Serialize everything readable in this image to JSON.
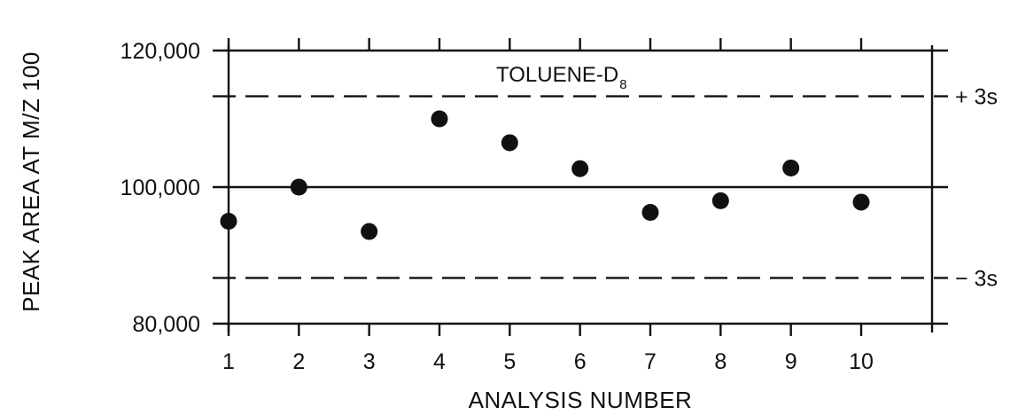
{
  "chart_data": {
    "type": "scatter",
    "title": "",
    "xlabel": "ANALYSIS NUMBER",
    "ylabel": "PEAK AREA AT M/Z 100",
    "annotation": {
      "main": "TOLUENE-D",
      "subscript": "8"
    },
    "xlim": [
      1,
      10
    ],
    "ylim": [
      80000,
      120000
    ],
    "x_ticks": [
      1,
      2,
      3,
      4,
      5,
      6,
      7,
      8,
      9,
      10
    ],
    "x_tick_labels": [
      "1",
      "2",
      "3",
      "4",
      "5",
      "6",
      "7",
      "8",
      "9",
      "10"
    ],
    "y_ticks": [
      80000,
      100000,
      120000
    ],
    "y_tick_labels": [
      "80,000",
      "100,000",
      "120,000"
    ],
    "points": [
      {
        "x": 1,
        "y": 95000
      },
      {
        "x": 2,
        "y": 100000
      },
      {
        "x": 3,
        "y": 93500
      },
      {
        "x": 4,
        "y": 110000
      },
      {
        "x": 5,
        "y": 106500
      },
      {
        "x": 6,
        "y": 102700
      },
      {
        "x": 7,
        "y": 96300
      },
      {
        "x": 8,
        "y": 98000
      },
      {
        "x": 9,
        "y": 102800
      },
      {
        "x": 10,
        "y": 97800
      }
    ],
    "reference_lines": [
      {
        "y": 113300,
        "style": "dashed",
        "label": "+ 3s"
      },
      {
        "y": 100000,
        "style": "solid",
        "label": ""
      },
      {
        "y": 86700,
        "style": "dashed",
        "label": "− 3s"
      }
    ],
    "grid": false,
    "colors": {
      "ink": "#111111",
      "background": "#ffffff"
    }
  }
}
